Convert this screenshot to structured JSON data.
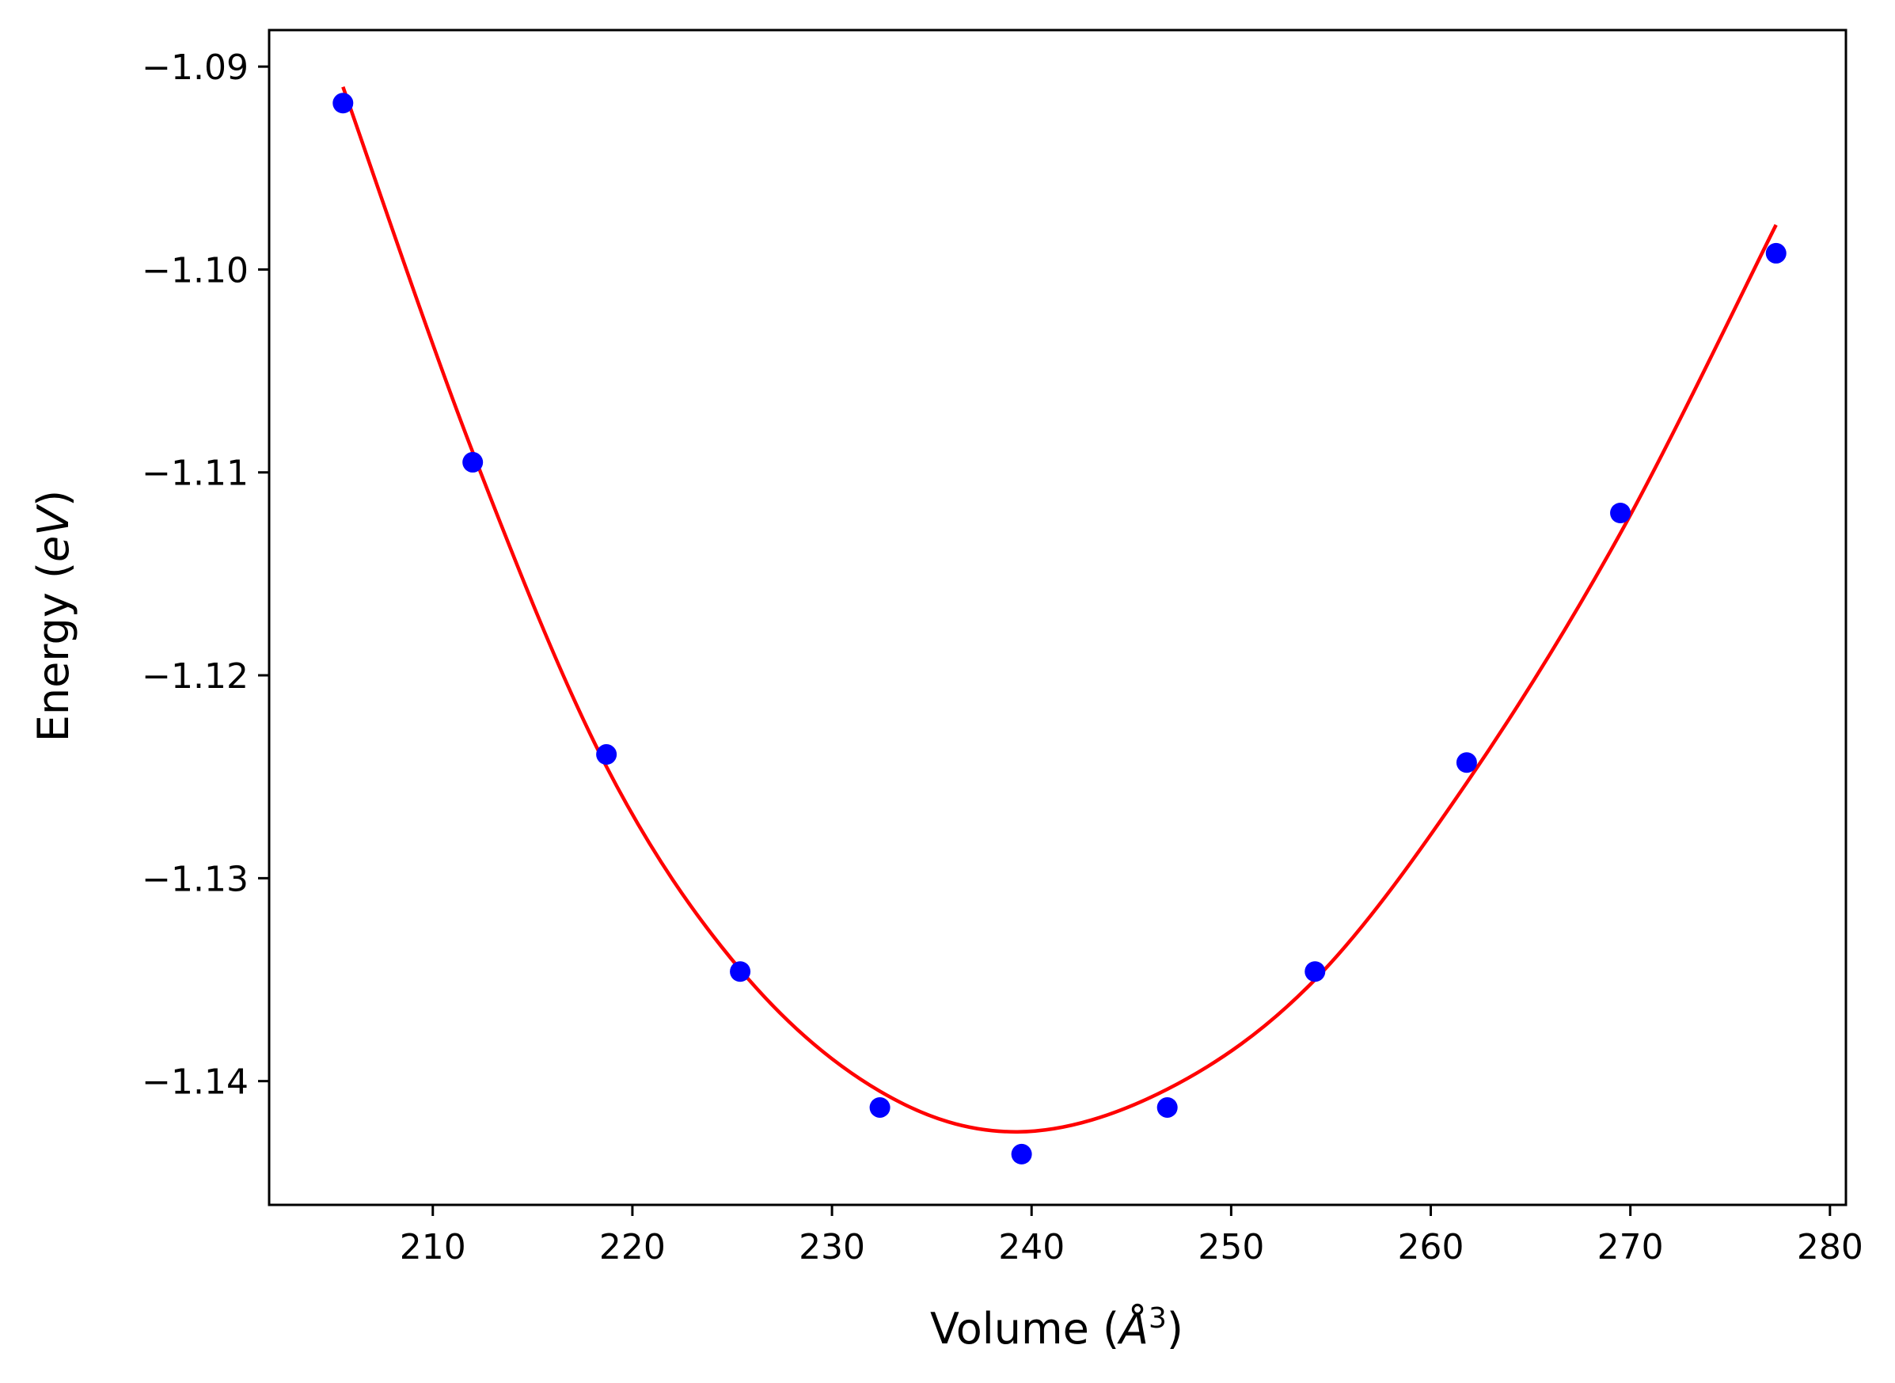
{
  "chart_data": {
    "type": "scatter",
    "title": "",
    "xlabel": "Volume (",
    "xlabel_unit": "Å",
    "xlabel_sup": "3",
    "xlabel_close": ")",
    "ylabel": "Energy (",
    "ylabel_unit": "eV",
    "ylabel_close": ")",
    "xlim": [
      201.8,
      280.8
    ],
    "ylim": [
      -1.1461,
      -1.0882
    ],
    "x_ticks": [
      210,
      220,
      230,
      240,
      250,
      260,
      270,
      280
    ],
    "y_ticks": [
      -1.09,
      -1.1,
      -1.11,
      -1.12,
      -1.13,
      -1.14
    ],
    "x_tick_labels": [
      "210",
      "220",
      "230",
      "240",
      "250",
      "260",
      "270",
      "280"
    ],
    "y_tick_labels": [
      "−1.09",
      "−1.10",
      "−1.11",
      "−1.12",
      "−1.13",
      "−1.14"
    ],
    "grid": false,
    "series": [
      {
        "kind": "scatter",
        "color": "#0000ff",
        "x": [
          205.5,
          212.0,
          218.7,
          225.4,
          232.4,
          239.5,
          246.8,
          254.2,
          261.8,
          269.5,
          277.3
        ],
        "y": [
          -1.0918,
          -1.1095,
          -1.1239,
          -1.1346,
          -1.1413,
          -1.1436,
          -1.1413,
          -1.1346,
          -1.1243,
          -1.112,
          -1.0992
        ]
      },
      {
        "kind": "line",
        "color": "#ff0000",
        "x": [
          205.5,
          212.0,
          218.7,
          225.4,
          232.4,
          239.3,
          246.8,
          254.2,
          261.8,
          269.5,
          277.3
        ],
        "y": [
          -1.091,
          -1.109,
          -1.1245,
          -1.1345,
          -1.1405,
          -1.1425,
          -1.1404,
          -1.135,
          -1.1253,
          -1.113,
          -1.0978
        ]
      }
    ]
  }
}
